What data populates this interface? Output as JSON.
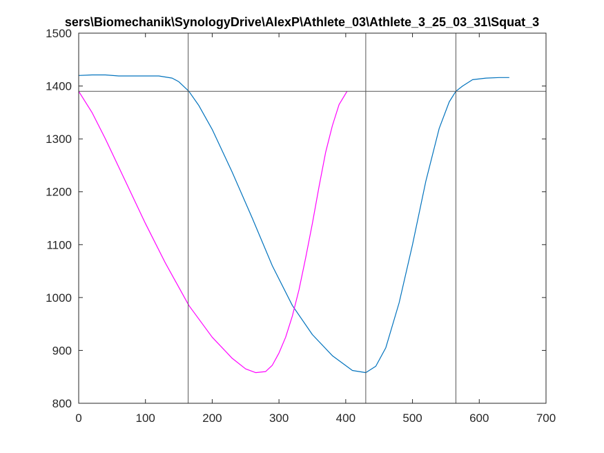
{
  "title": "sers\\Biomechanik\\SynologyDrive\\AlexP\\Athlete_03\\Athlete_3_25_03_31\\Squat_3",
  "chart_data": {
    "type": "line",
    "title": "sers\\Biomechanik\\SynologyDrive\\AlexP\\Athlete_03\\Athlete_3_25_03_31\\Squat_3",
    "xlabel": "",
    "ylabel": "",
    "xlim": [
      0,
      700
    ],
    "ylim": [
      800,
      1500
    ],
    "xticks": [
      0,
      100,
      200,
      300,
      400,
      500,
      600,
      700
    ],
    "yticks": [
      800,
      900,
      1000,
      1100,
      1200,
      1300,
      1400,
      1500
    ],
    "grid": false,
    "legend": "none",
    "series": [
      {
        "color": "#0072bd",
        "x": [
          0,
          20,
          40,
          60,
          80,
          100,
          120,
          140,
          150,
          165,
          180,
          200,
          230,
          260,
          290,
          320,
          350,
          380,
          410,
          430,
          445,
          460,
          480,
          500,
          520,
          540,
          555,
          565,
          575,
          590,
          610,
          630,
          645
        ],
        "y": [
          1420,
          1421,
          1421,
          1419,
          1419,
          1419,
          1419,
          1415,
          1408,
          1390,
          1363,
          1318,
          1237,
          1150,
          1060,
          985,
          930,
          890,
          862,
          858,
          870,
          905,
          990,
          1100,
          1220,
          1320,
          1370,
          1390,
          1400,
          1412,
          1415,
          1416,
          1416
        ]
      },
      {
        "color": "#ff00ff",
        "x": [
          0,
          20,
          40,
          70,
          100,
          130,
          165,
          200,
          230,
          250,
          265,
          280,
          290,
          300,
          310,
          320,
          330,
          340,
          350,
          360,
          370,
          380,
          390,
          402
        ],
        "y": [
          1390,
          1350,
          1300,
          1220,
          1140,
          1065,
          985,
          925,
          885,
          865,
          858,
          860,
          872,
          895,
          925,
          965,
          1015,
          1075,
          1140,
          1210,
          1275,
          1325,
          1365,
          1390
        ]
      }
    ],
    "reference_lines": {
      "vertical": [
        164,
        430,
        565
      ],
      "horizontal": [
        1390
      ]
    }
  }
}
